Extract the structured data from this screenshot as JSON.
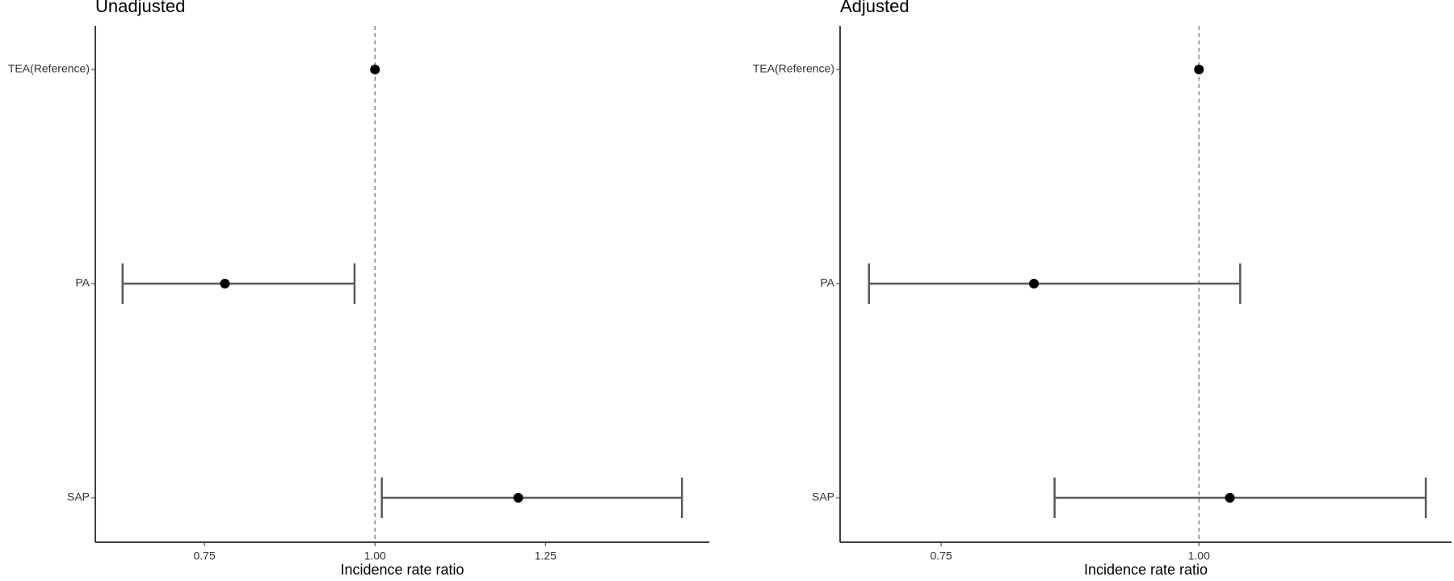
{
  "chart_data": [
    {
      "type": "forest",
      "title": "Unadjusted",
      "x_label": "Incidence rate ratio",
      "categories": [
        "TEA(Reference)",
        "PA",
        "SAP"
      ],
      "values": [
        1.0,
        0.78,
        1.21
      ],
      "lower": [
        null,
        0.63,
        1.01
      ],
      "upper": [
        null,
        0.97,
        1.45
      ],
      "reference_line": 1,
      "xlim": [
        0.59,
        1.49
      ],
      "xticks": [
        0.75,
        {
          "value": 1.0,
          "label": "1.00"
        },
        {
          "value": 1.25,
          "label": "1.25"
        }
      ],
      "point_color": "#000000",
      "bar_color": "#595959"
    },
    {
      "type": "forest",
      "title": "Adjusted",
      "x_label": "Incidence rate ratio",
      "categories": [
        "TEA(Reference)",
        "PA",
        "SAP"
      ],
      "values": [
        1.0,
        0.84,
        1.03
      ],
      "lower": [
        null,
        0.68,
        0.86
      ],
      "upper": [
        null,
        1.04,
        1.22
      ],
      "reference_line": 1,
      "xlim": [
        0.652,
        1.245
      ],
      "xticks": [
        0.75,
        {
          "value": 1.0,
          "label": "1.00"
        }
      ],
      "point_color": "#000000",
      "bar_color": "#595959"
    }
  ]
}
